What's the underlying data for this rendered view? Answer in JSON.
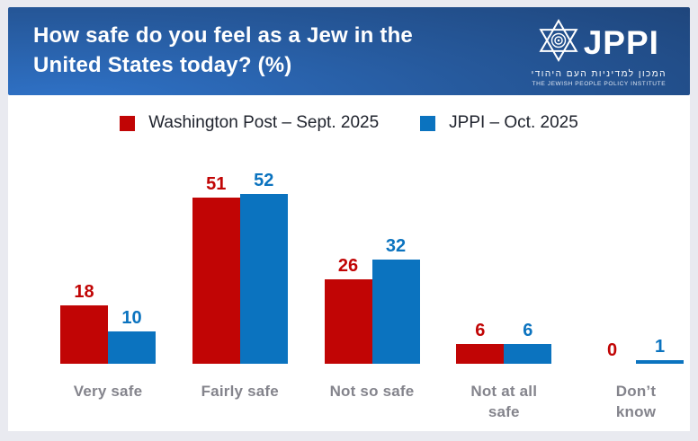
{
  "header": {
    "title_lines": [
      "How safe do you feel as a Jew in the",
      "United States today? (%)"
    ],
    "logo": {
      "name": "JPPI",
      "hebrew": "המכון למדיניות העם היהודי",
      "english": "THE JEWISH PEOPLE POLICY INSTITUTE"
    }
  },
  "legend": [
    {
      "label": "Washington Post – Sept. 2025",
      "color": "#c10505"
    },
    {
      "label": "JPPI – Oct. 2025",
      "color": "#0b73bf"
    }
  ],
  "chart_data": {
    "type": "bar",
    "title": "How safe do you feel as a Jew in the United States today? (%)",
    "categories": [
      "Very safe",
      "Fairly safe",
      "Not so safe",
      "Not at all safe",
      "Don’t know"
    ],
    "series": [
      {
        "name": "Washington Post – Sept. 2025",
        "color": "#c10505",
        "values": [
          18,
          51,
          26,
          6,
          0
        ]
      },
      {
        "name": "JPPI – Oct. 2025",
        "color": "#0b73bf",
        "values": [
          10,
          52,
          32,
          6,
          1
        ]
      }
    ],
    "value_labels": true,
    "ylim": [
      0,
      55
    ],
    "axes_hidden": true,
    "grid": false,
    "legend_position": "top"
  },
  "colors": {
    "series_red": "#c10505",
    "series_blue": "#0b73bf",
    "category_label": "#84848c",
    "legend_text": "#20242e",
    "header_gradient_light": "#2f72c7",
    "header_gradient_dark": "#1d4174",
    "frame_background": "#e9eaf0",
    "card_background": "#ffffff"
  }
}
